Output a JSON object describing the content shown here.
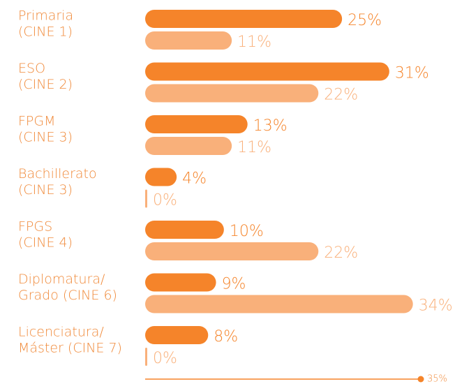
{
  "chart_data": {
    "type": "bar",
    "orientation": "horizontal",
    "categories": [
      [
        "Primaria",
        "(CINE 1)"
      ],
      [
        "ESO",
        "(CINE 2)"
      ],
      [
        "FPGM",
        "(CINE 3)"
      ],
      [
        "Bachillerato",
        "(CINE 3)"
      ],
      [
        "FPGS",
        "(CINE 4)"
      ],
      [
        "Diplomatura/",
        "Grado (CINE 6)"
      ],
      [
        "Licenciatura/",
        "Máster (CINE 7)"
      ]
    ],
    "series": [
      {
        "color": "#f5842a",
        "values": [
          25,
          31,
          13,
          4,
          10,
          9,
          8
        ],
        "value_labels": [
          "25%",
          "31%",
          "13%",
          "4%",
          "10%",
          "9%",
          "8%"
        ]
      },
      {
        "color": "#f9b07a",
        "values": [
          11,
          22,
          11,
          0,
          22,
          34,
          0
        ],
        "value_labels": [
          "11%",
          "22%",
          "11%",
          "0%",
          "22%",
          "34%",
          "0%"
        ]
      }
    ],
    "xlim": [
      0,
      35
    ],
    "xticks": [
      {
        "value": 35,
        "label": "35%"
      }
    ]
  }
}
